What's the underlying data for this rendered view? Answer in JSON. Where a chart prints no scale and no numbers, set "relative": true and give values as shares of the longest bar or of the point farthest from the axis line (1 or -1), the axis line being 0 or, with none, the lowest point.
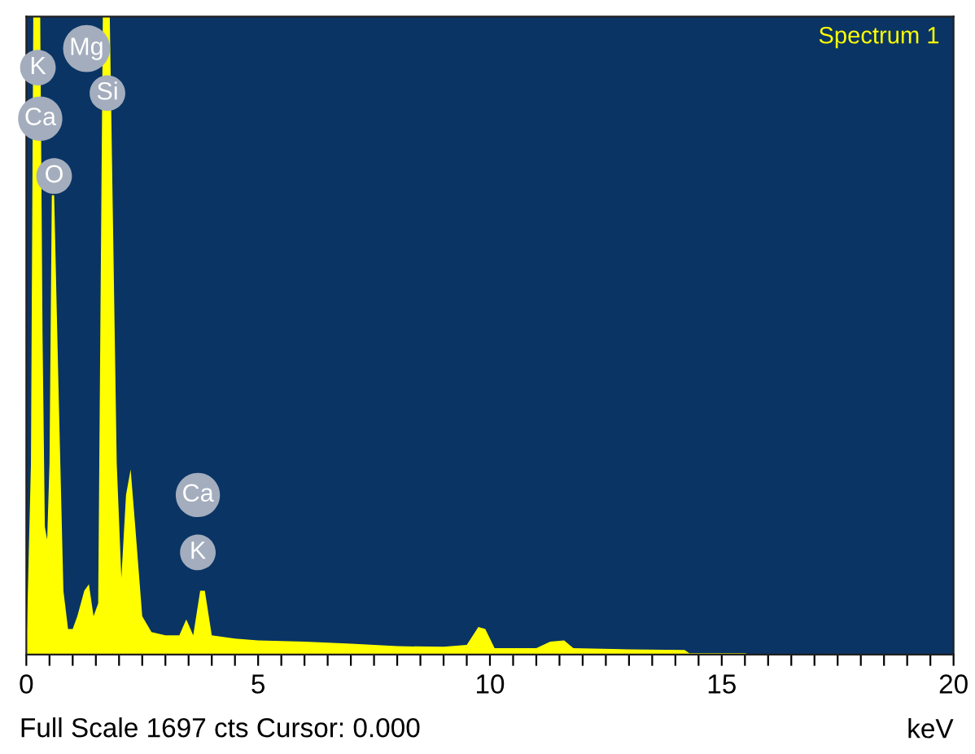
{
  "chart_data": {
    "type": "area",
    "relative": true,
    "series": [
      {
        "name": "Spectrum 1",
        "color": "#ffff00",
        "x": [
          0.0,
          0.1,
          0.15,
          0.2,
          0.3,
          0.35,
          0.4,
          0.45,
          0.5,
          0.55,
          0.6,
          0.7,
          0.8,
          0.9,
          1.0,
          1.1,
          1.25,
          1.35,
          1.45,
          1.55,
          1.65,
          1.8,
          1.95,
          2.05,
          2.15,
          2.25,
          2.35,
          2.5,
          2.7,
          3.0,
          3.3,
          3.45,
          3.6,
          3.75,
          3.85,
          4.0,
          4.5,
          5,
          6,
          7,
          8,
          9,
          9.5,
          9.75,
          9.9,
          10.1,
          11,
          11.3,
          11.6,
          11.8,
          13,
          14.2,
          14.3,
          15.5,
          15.6,
          20
        ],
        "values": [
          0,
          0.3,
          1,
          1,
          1,
          0.5,
          0.2,
          0.18,
          0.3,
          0.72,
          0.72,
          0.4,
          0.1,
          0.04,
          0.04,
          0.06,
          0.1,
          0.11,
          0.06,
          0.08,
          1,
          1,
          0.3,
          0.12,
          0.25,
          0.29,
          0.2,
          0.06,
          0.035,
          0.03,
          0.03,
          0.055,
          0.03,
          0.1,
          0.1,
          0.03,
          0.025,
          0.022,
          0.02,
          0.017,
          0.013,
          0.012,
          0.015,
          0.043,
          0.04,
          0.01,
          0.01,
          0.02,
          0.022,
          0.01,
          0.008,
          0.007,
          0.002,
          0.002,
          0,
          0
        ]
      }
    ],
    "xlabel": "keV",
    "xlim": [
      0,
      20
    ],
    "xticks": [
      0,
      {
        "value": 0.5,
        "label": null
      },
      {
        "value": 1,
        "label": null
      },
      {
        "value": 1.5,
        "label": null
      },
      {
        "value": 2,
        "label": null
      },
      {
        "value": 2.5,
        "label": null
      },
      {
        "value": 3,
        "label": null
      },
      {
        "value": 3.5,
        "label": null
      },
      {
        "value": 4,
        "label": null
      },
      {
        "value": 4.5,
        "label": null
      },
      5,
      {
        "value": 5.5,
        "label": null
      },
      {
        "value": 6,
        "label": null
      },
      {
        "value": 6.5,
        "label": null
      },
      {
        "value": 7,
        "label": null
      },
      {
        "value": 7.5,
        "label": null
      },
      {
        "value": 8,
        "label": null
      },
      {
        "value": 8.5,
        "label": null
      },
      {
        "value": 9,
        "label": null
      },
      {
        "value": 9.5,
        "label": null
      },
      10,
      {
        "value": 10.5,
        "label": null
      },
      {
        "value": 11,
        "label": null
      },
      {
        "value": 11.5,
        "label": null
      },
      {
        "value": 12,
        "label": null
      },
      {
        "value": 12.5,
        "label": null
      },
      {
        "value": 13,
        "label": null
      },
      {
        "value": 13.5,
        "label": null
      },
      {
        "value": 14,
        "label": null
      },
      {
        "value": 14.5,
        "label": null
      },
      15,
      {
        "value": 15.5,
        "label": null
      },
      {
        "value": 16,
        "label": null
      },
      {
        "value": 16.5,
        "label": null
      },
      {
        "value": 17,
        "label": null
      },
      {
        "value": 17.5,
        "label": null
      },
      {
        "value": 18,
        "label": null
      },
      {
        "value": 18.5,
        "label": null
      },
      {
        "value": 19,
        "label": null
      },
      {
        "value": 19.5,
        "label": null
      },
      20
    ],
    "grid": false,
    "annotations": [
      {
        "text": "K",
        "x": 0.25,
        "y": 0.92
      },
      {
        "text": "Ca",
        "x": 0.3,
        "y": 0.84
      },
      {
        "text": "O",
        "x": 0.6,
        "y": 0.75
      },
      {
        "text": "Mg",
        "x": 1.3,
        "y": 0.95
      },
      {
        "text": "Si",
        "x": 1.75,
        "y": 0.88
      },
      {
        "text": "Ca",
        "x": 3.7,
        "y": 0.25
      },
      {
        "text": "K",
        "x": 3.7,
        "y": 0.16
      },
      "Full Scale 1697 cts Cursor: 0.000"
    ]
  }
}
